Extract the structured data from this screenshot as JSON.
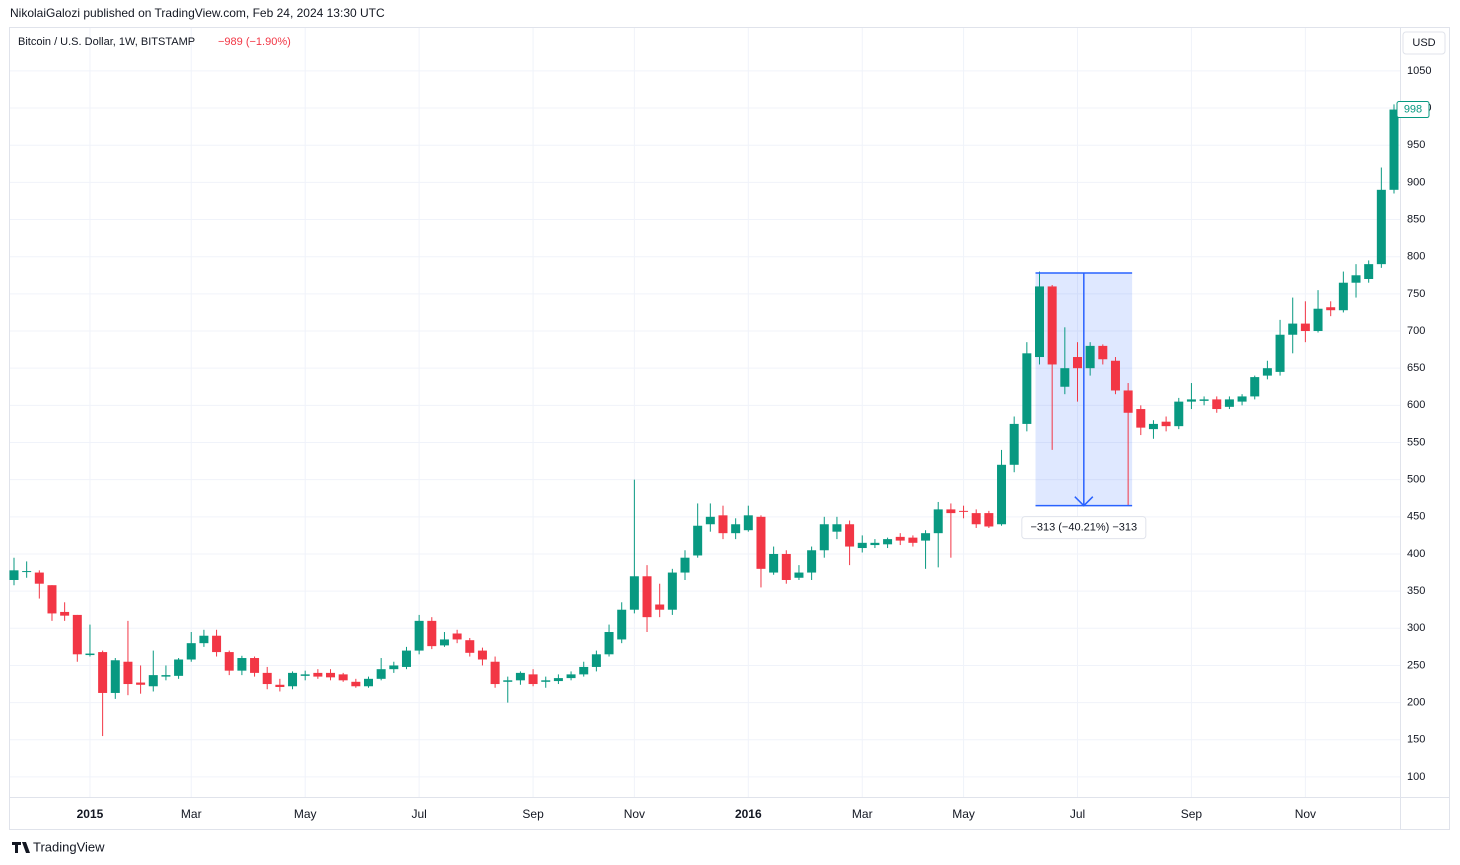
{
  "header": {
    "byline": "NikolaiGalozi published on TradingView.com, Feb 24, 2024 13:30 UTC",
    "currency": "USD"
  },
  "footer": {
    "brand": "TradingView"
  },
  "chart_data": {
    "type": "candlestick",
    "title": "Bitcoin / U.S. Dollar, 1W, BITSTAMP",
    "subtitle": "−989 (−1.90%)",
    "up_color": "#089981",
    "down_color": "#f23645",
    "grid": true,
    "categories": [
      null,
      null,
      null,
      null,
      null,
      null,
      "2015",
      null,
      null,
      null,
      null,
      null,
      null,
      null,
      "Mar",
      null,
      null,
      null,
      null,
      null,
      null,
      null,
      null,
      "May",
      null,
      null,
      null,
      null,
      null,
      null,
      null,
      null,
      "Jul",
      null,
      null,
      null,
      null,
      null,
      null,
      null,
      null,
      "Sep",
      null,
      null,
      null,
      null,
      null,
      null,
      null,
      "Nov",
      null,
      null,
      null,
      null,
      null,
      null,
      null,
      null,
      "2016",
      null,
      null,
      null,
      null,
      null,
      null,
      null,
      null,
      "Mar",
      null,
      null,
      null,
      null,
      null,
      null,
      null,
      "May",
      null,
      null,
      null,
      null,
      null,
      null,
      null,
      null,
      "Jul",
      null,
      null,
      null,
      null,
      null,
      null,
      null,
      null,
      "Sep",
      null,
      null,
      null,
      null,
      null,
      null,
      null,
      null,
      "Nov",
      null,
      null,
      null,
      null,
      null,
      null,
      null
    ],
    "open": [
      365,
      376,
      375,
      358,
      322,
      318,
      264,
      268,
      213,
      255,
      227,
      222,
      235,
      236,
      258,
      280,
      290,
      268,
      243,
      260,
      240,
      224,
      222,
      236,
      240,
      240,
      238,
      228,
      222,
      232,
      245,
      248,
      270,
      310,
      277,
      293,
      284,
      270,
      255,
      228,
      230,
      238,
      228,
      229,
      233,
      238,
      248,
      265,
      285,
      325,
      370,
      332,
      325,
      375,
      398,
      440,
      452,
      428,
      432,
      450,
      375,
      400,
      368,
      375,
      405,
      430,
      440,
      408,
      412,
      413,
      423,
      422,
      418,
      428,
      460,
      458,
      455,
      455,
      440,
      520,
      575,
      665,
      760,
      625,
      665,
      650,
      680,
      660,
      620,
      595,
      568,
      578,
      572,
      605,
      606,
      608,
      598,
      605,
      612,
      640,
      645,
      695,
      710,
      700,
      732,
      728,
      765,
      770,
      790,
      890
    ],
    "high": [
      395,
      390,
      378,
      358,
      335,
      318,
      305,
      270,
      260,
      310,
      250,
      270,
      250,
      260,
      295,
      298,
      298,
      270,
      263,
      262,
      248,
      232,
      242,
      243,
      245,
      245,
      240,
      232,
      235,
      260,
      255,
      275,
      318,
      315,
      295,
      298,
      287,
      274,
      262,
      235,
      242,
      245,
      235,
      238,
      242,
      255,
      270,
      305,
      335,
      500,
      385,
      360,
      380,
      405,
      468,
      468,
      465,
      448,
      465,
      452,
      410,
      405,
      385,
      410,
      450,
      450,
      445,
      425,
      420,
      422,
      428,
      425,
      432,
      470,
      468,
      465,
      460,
      458,
      540,
      585,
      685,
      780,
      762,
      705,
      685,
      685,
      682,
      665,
      630,
      600,
      580,
      585,
      610,
      630,
      612,
      612,
      612,
      615,
      640,
      660,
      715,
      745,
      740,
      755,
      740,
      780,
      790,
      795,
      920,
      1005
    ],
    "low": [
      358,
      368,
      340,
      310,
      310,
      255,
      262,
      155,
      205,
      210,
      212,
      215,
      230,
      232,
      255,
      275,
      262,
      237,
      237,
      235,
      218,
      215,
      218,
      230,
      232,
      230,
      228,
      220,
      220,
      230,
      240,
      245,
      265,
      272,
      275,
      280,
      262,
      250,
      220,
      200,
      224,
      222,
      220,
      225,
      230,
      235,
      242,
      262,
      280,
      320,
      295,
      315,
      318,
      365,
      395,
      430,
      420,
      420,
      430,
      355,
      372,
      360,
      365,
      365,
      395,
      420,
      385,
      402,
      408,
      408,
      412,
      410,
      380,
      382,
      395,
      448,
      435,
      435,
      438,
      510,
      565,
      655,
      540,
      615,
      605,
      640,
      655,
      615,
      465,
      560,
      555,
      565,
      568,
      595,
      600,
      590,
      595,
      600,
      608,
      635,
      640,
      670,
      685,
      698,
      720,
      725,
      745,
      765,
      785,
      885
    ],
    "close": [
      378,
      377,
      360,
      320,
      317,
      265,
      266,
      213,
      257,
      225,
      224,
      237,
      237,
      258,
      280,
      290,
      268,
      243,
      260,
      240,
      225,
      221,
      240,
      238,
      235,
      234,
      230,
      222,
      232,
      245,
      250,
      270,
      310,
      276,
      285,
      285,
      267,
      258,
      225,
      230,
      240,
      225,
      230,
      233,
      238,
      248,
      265,
      295,
      325,
      370,
      315,
      325,
      375,
      395,
      438,
      450,
      428,
      440,
      452,
      380,
      400,
      365,
      375,
      405,
      440,
      440,
      410,
      415,
      415,
      420,
      418,
      415,
      428,
      460,
      455,
      457,
      440,
      437,
      520,
      575,
      670,
      760,
      655,
      650,
      650,
      680,
      662,
      620,
      590,
      570,
      575,
      572,
      605,
      608,
      608,
      595,
      608,
      612,
      638,
      650,
      695,
      710,
      700,
      730,
      728,
      765,
      775,
      790,
      890,
      998
    ],
    "ylim": [
      73,
      1101
    ],
    "yticks": [
      100,
      150,
      200,
      250,
      300,
      350,
      400,
      450,
      500,
      550,
      600,
      650,
      700,
      750,
      800,
      850,
      900,
      950,
      1000,
      1050
    ],
    "measure": {
      "start": 81,
      "end": 88,
      "high": 778,
      "low": 465,
      "label": "−313 (−40.21%) −313",
      "color": "#2962ff"
    }
  }
}
